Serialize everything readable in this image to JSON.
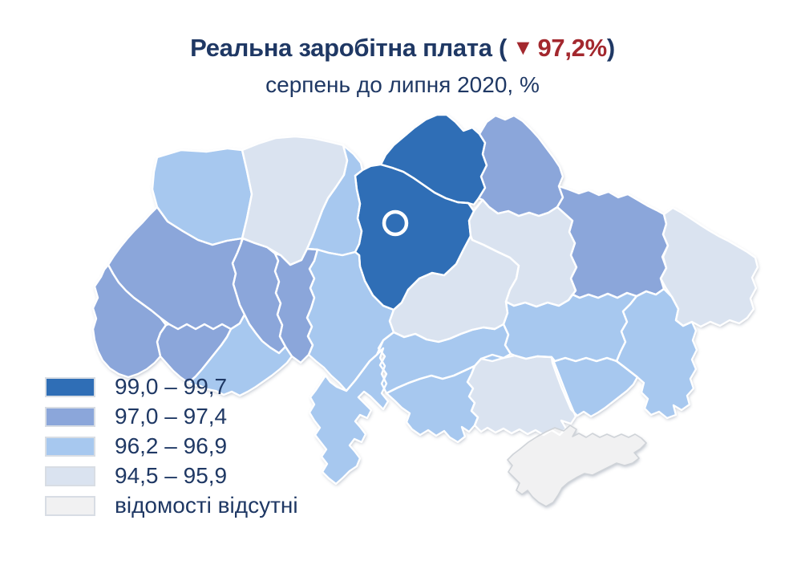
{
  "title": {
    "text_before": "Реальна заробітна плата (",
    "arrow": "▼",
    "highlight": "97,2%",
    "text_after": ")"
  },
  "subtitle": "серпень до липня 2020, %",
  "colors": {
    "title_navy": "#1f3864",
    "accent_red": "#a3282e",
    "region_border": "#ffffff",
    "nodata_border": "#cfd3d8"
  },
  "legend": {
    "items": [
      {
        "id": "b0",
        "label": "99,0 – 99,7",
        "color": "#2f6eb6"
      },
      {
        "id": "b1",
        "label": "97,0 – 97,4",
        "color": "#8ba6da"
      },
      {
        "id": "b2",
        "label": "96,2 – 96,9",
        "color": "#a7c8ef"
      },
      {
        "id": "b3",
        "label": "94,5 – 95,9",
        "color": "#dae3f0"
      },
      {
        "id": "b4",
        "label": "відомості відсутні",
        "color": "#f1f1f2"
      }
    ]
  },
  "map": {
    "capital_marker": {
      "name": "kyiv-city",
      "shape": "ring"
    },
    "regions": [
      {
        "id": "volyn",
        "bucket": "b2"
      },
      {
        "id": "rivne",
        "bucket": "b3"
      },
      {
        "id": "zhytomyr",
        "bucket": "b2"
      },
      {
        "id": "kyiv-oblast",
        "bucket": "b0"
      },
      {
        "id": "chernihiv",
        "bucket": "b0"
      },
      {
        "id": "sumy",
        "bucket": "b1"
      },
      {
        "id": "poltava",
        "bucket": "b3"
      },
      {
        "id": "kharkiv",
        "bucket": "b1"
      },
      {
        "id": "luhansk",
        "bucket": "b3"
      },
      {
        "id": "donetsk",
        "bucket": "b2"
      },
      {
        "id": "dnipropetrovsk",
        "bucket": "b2"
      },
      {
        "id": "zaporizhzhia",
        "bucket": "b2"
      },
      {
        "id": "kherson",
        "bucket": "b3"
      },
      {
        "id": "mykolaiv",
        "bucket": "b2"
      },
      {
        "id": "kirovohrad",
        "bucket": "b2"
      },
      {
        "id": "cherkasy",
        "bucket": "b3"
      },
      {
        "id": "odesa",
        "bucket": "b2"
      },
      {
        "id": "vinnytsia",
        "bucket": "b2"
      },
      {
        "id": "khmelnytskyi",
        "bucket": "b1"
      },
      {
        "id": "ternopil",
        "bucket": "b1"
      },
      {
        "id": "lviv",
        "bucket": "b1"
      },
      {
        "id": "ivano-frankivsk",
        "bucket": "b1"
      },
      {
        "id": "zakarpattia",
        "bucket": "b1"
      },
      {
        "id": "chernivtsi",
        "bucket": "b2"
      },
      {
        "id": "crimea",
        "bucket": "b4"
      }
    ]
  }
}
